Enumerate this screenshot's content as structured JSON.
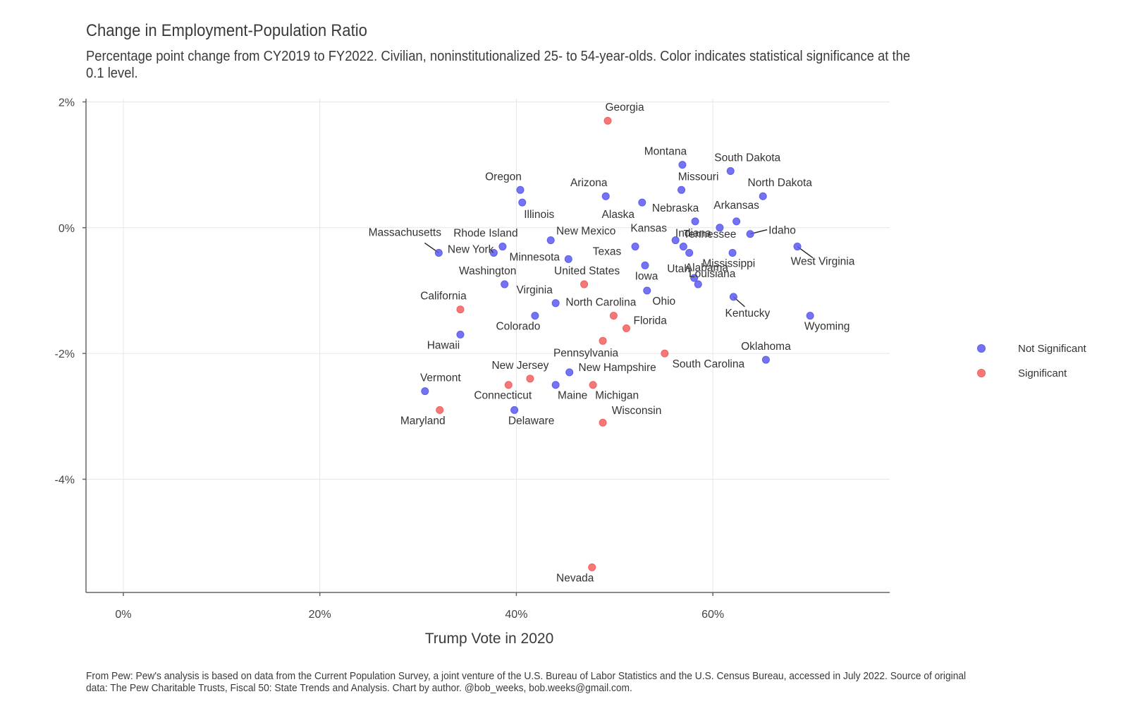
{
  "chart_data": {
    "type": "scatter",
    "title": "Change in Employment-Population Ratio",
    "subtitle": "Percentage point change from CY2019 to FY2022. Civilian, noninstitutionalized 25- to 54-year-olds. Color indicates statistical significance at the 0.1 level.",
    "xlabel": "Trump Vote in 2020",
    "ylabel": "",
    "xlim": [
      -3.8,
      78
    ],
    "ylim": [
      -5.8,
      2.05
    ],
    "x_ticks": [
      0,
      20,
      40,
      60
    ],
    "x_tick_labels": [
      "0%",
      "20%",
      "40%",
      "60%"
    ],
    "y_ticks": [
      2,
      0,
      -2,
      -4
    ],
    "y_tick_labels": [
      "2%",
      "0%",
      "-2%",
      "-4%"
    ],
    "grid": true,
    "legend_position": "right",
    "colors": {
      "Not Significant": "#5c5cf0",
      "Significant": "#f26060"
    },
    "legend": [
      {
        "key": "Not Significant",
        "label": "Not Significant"
      },
      {
        "key": "Significant",
        "label": "Significant"
      }
    ],
    "caption": "From Pew: Pew's analysis is based on data from the Current Population Survey, a joint venture of the U.S. Bureau of Labor Statistics and the U.S. Census Bureau, accessed in July 2022. Source of original data: The Pew Charitable Trusts, Fiscal 50: State Trends and Analysis. Chart by author. @bob_weeks, bob.weeks@gmail.com.",
    "points": [
      {
        "label": "Georgia",
        "x": 49.3,
        "y": 1.7,
        "significance": "Significant"
      },
      {
        "label": "Montana",
        "x": 56.9,
        "y": 1.0,
        "significance": "Not Significant"
      },
      {
        "label": "South Dakota",
        "x": 61.8,
        "y": 0.9,
        "significance": "Not Significant"
      },
      {
        "label": "Oregon",
        "x": 40.4,
        "y": 0.6,
        "significance": "Not Significant"
      },
      {
        "label": "Missouri",
        "x": 56.8,
        "y": 0.6,
        "significance": "Not Significant"
      },
      {
        "label": "Arizona",
        "x": 49.1,
        "y": 0.5,
        "significance": "Not Significant"
      },
      {
        "label": "North Dakota",
        "x": 65.1,
        "y": 0.5,
        "significance": "Not Significant"
      },
      {
        "label": "Illinois",
        "x": 40.6,
        "y": 0.4,
        "significance": "Not Significant"
      },
      {
        "label": "Alaska",
        "x": 52.8,
        "y": 0.4,
        "significance": "Not Significant"
      },
      {
        "label": "Nebraska",
        "x": 58.2,
        "y": 0.1,
        "significance": "Not Significant"
      },
      {
        "label": "Arkansas",
        "x": 62.4,
        "y": 0.1,
        "significance": "Not Significant"
      },
      {
        "label": "Idaho",
        "x": 63.8,
        "y": -0.1,
        "significance": "Not Significant"
      },
      {
        "label": "Kansas",
        "x": 56.2,
        "y": -0.2,
        "significance": "Not Significant"
      },
      {
        "label": "Tennessee",
        "x": 60.7,
        "y": 0.0,
        "significance": "Not Significant"
      },
      {
        "label": "New Mexico",
        "x": 43.5,
        "y": -0.2,
        "significance": "Not Significant"
      },
      {
        "label": "Rhode Island",
        "x": 38.6,
        "y": -0.3,
        "significance": "Not Significant"
      },
      {
        "label": "Texas",
        "x": 52.1,
        "y": -0.3,
        "significance": "Not Significant"
      },
      {
        "label": "Alabama",
        "x": 62.0,
        "y": -0.4,
        "significance": "Not Significant"
      },
      {
        "label": "West Virginia",
        "x": 68.6,
        "y": -0.3,
        "significance": "Not Significant"
      },
      {
        "label": "Massachusetts",
        "x": 32.1,
        "y": -0.4,
        "significance": "Not Significant"
      },
      {
        "label": "New York",
        "x": 37.7,
        "y": -0.4,
        "significance": "Not Significant"
      },
      {
        "label": "Minnesota",
        "x": 45.3,
        "y": -0.5,
        "significance": "Not Significant"
      },
      {
        "label": "Indiana",
        "x": 57.0,
        "y": -0.3,
        "significance": "Not Significant"
      },
      {
        "label": "Mississippi",
        "x": 57.6,
        "y": -0.4,
        "significance": "Not Significant"
      },
      {
        "label": "Iowa",
        "x": 53.1,
        "y": -0.6,
        "significance": "Not Significant"
      },
      {
        "label": "Utah",
        "x": 58.1,
        "y": -0.8,
        "significance": "Not Significant"
      },
      {
        "label": "Washington",
        "x": 38.8,
        "y": -0.9,
        "significance": "Not Significant"
      },
      {
        "label": "United States",
        "x": 46.9,
        "y": -0.9,
        "significance": "Significant"
      },
      {
        "label": "Louisiana",
        "x": 58.5,
        "y": -0.9,
        "significance": "Not Significant"
      },
      {
        "label": "Ohio",
        "x": 53.3,
        "y": -1.0,
        "significance": "Not Significant"
      },
      {
        "label": "Kentucky",
        "x": 62.1,
        "y": -1.1,
        "significance": "Not Significant"
      },
      {
        "label": "Virginia",
        "x": 44.0,
        "y": -1.2,
        "significance": "Not Significant"
      },
      {
        "label": "California",
        "x": 34.3,
        "y": -1.3,
        "significance": "Significant"
      },
      {
        "label": "Colorado",
        "x": 41.9,
        "y": -1.4,
        "significance": "Not Significant"
      },
      {
        "label": "North Carolina",
        "x": 49.9,
        "y": -1.4,
        "significance": "Significant"
      },
      {
        "label": "Wyoming",
        "x": 69.9,
        "y": -1.4,
        "significance": "Not Significant"
      },
      {
        "label": "Florida",
        "x": 51.2,
        "y": -1.6,
        "significance": "Significant"
      },
      {
        "label": "Hawaii",
        "x": 34.3,
        "y": -1.7,
        "significance": "Not Significant"
      },
      {
        "label": "Pennsylvania",
        "x": 48.8,
        "y": -1.8,
        "significance": "Significant"
      },
      {
        "label": "South Carolina",
        "x": 55.1,
        "y": -2.0,
        "significance": "Significant"
      },
      {
        "label": "Oklahoma",
        "x": 65.4,
        "y": -2.1,
        "significance": "Not Significant"
      },
      {
        "label": "New Hampshire",
        "x": 45.4,
        "y": -2.3,
        "significance": "Not Significant"
      },
      {
        "label": "New Jersey",
        "x": 41.4,
        "y": -2.4,
        "significance": "Significant"
      },
      {
        "label": "Connecticut",
        "x": 39.2,
        "y": -2.5,
        "significance": "Significant"
      },
      {
        "label": "Maine",
        "x": 44.0,
        "y": -2.5,
        "significance": "Not Significant"
      },
      {
        "label": "Michigan",
        "x": 47.8,
        "y": -2.5,
        "significance": "Significant"
      },
      {
        "label": "Vermont",
        "x": 30.7,
        "y": -2.6,
        "significance": "Not Significant"
      },
      {
        "label": "Maryland",
        "x": 32.2,
        "y": -2.9,
        "significance": "Significant"
      },
      {
        "label": "Delaware",
        "x": 39.8,
        "y": -2.9,
        "significance": "Not Significant"
      },
      {
        "label": "Wisconsin",
        "x": 48.8,
        "y": -3.1,
        "significance": "Significant"
      },
      {
        "label": "Nevada",
        "x": 47.7,
        "y": -5.4,
        "significance": "Significant"
      }
    ]
  }
}
